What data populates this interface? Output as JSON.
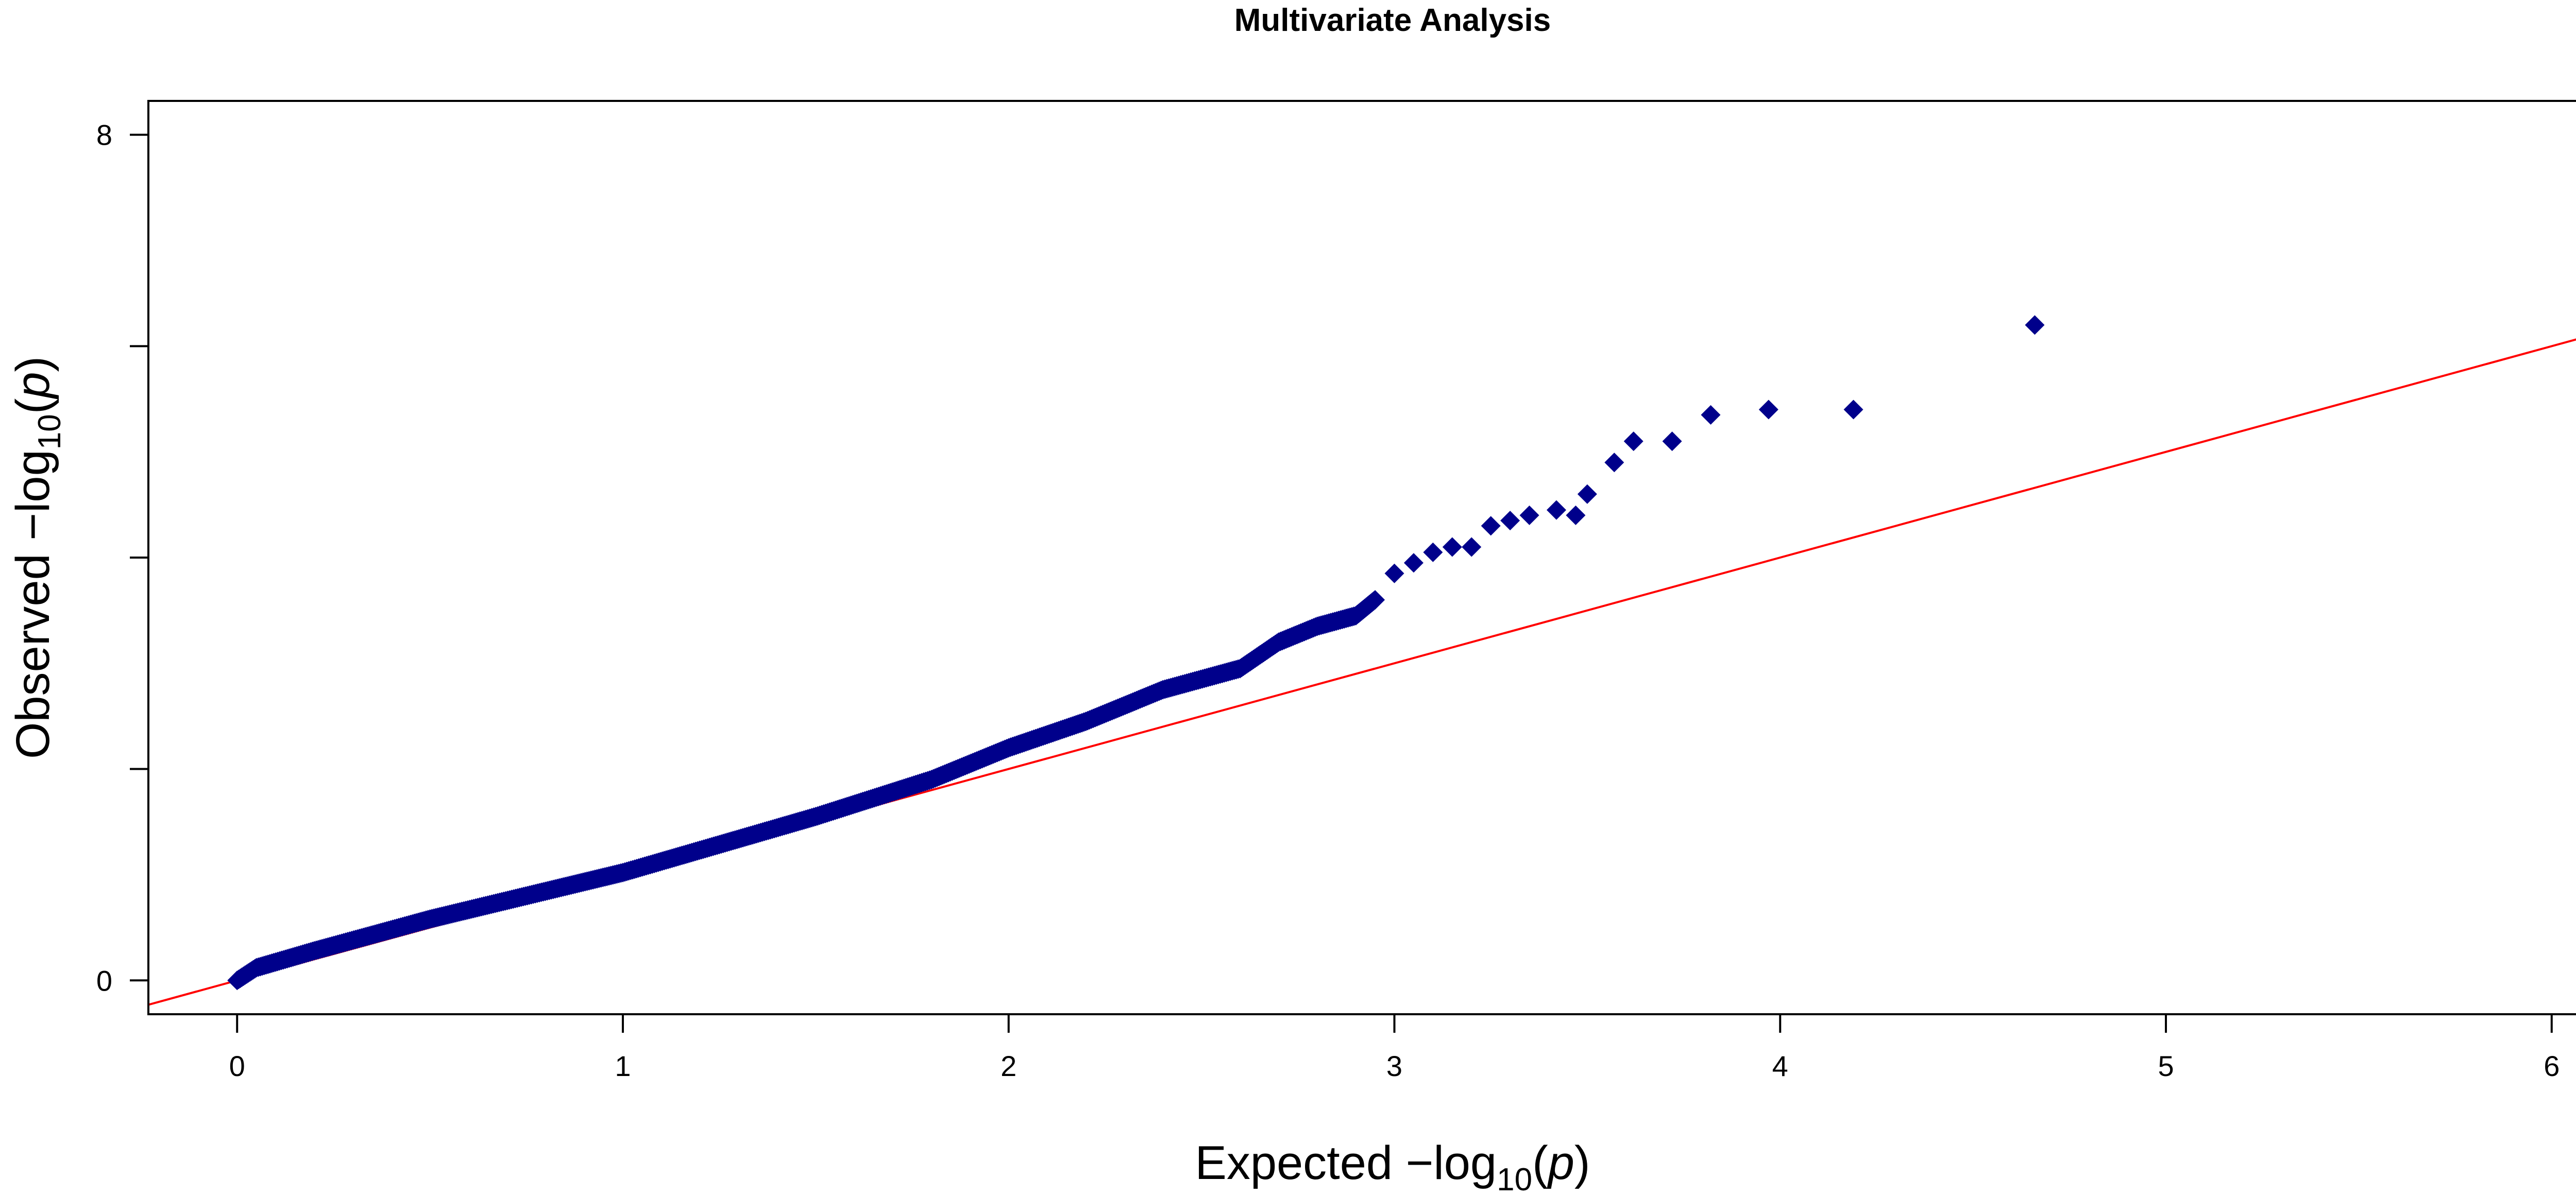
{
  "chart_data": {
    "type": "scatter",
    "title": "Multivariate Analysis",
    "xlabel": {
      "pre": "Expected  −log",
      "sub": "10",
      "paren_open": "(",
      "var": "p",
      "paren_close": ")"
    },
    "ylabel": {
      "pre": "Observed  −log",
      "sub": "10",
      "paren_open": "(",
      "var": "p",
      "paren_close": ")"
    },
    "xlim": [
      -0.23,
      6.23
    ],
    "ylim": [
      -0.32,
      8.32
    ],
    "x_ticks": [
      0,
      1,
      2,
      3,
      4,
      5,
      6
    ],
    "x_tick_labels": [
      "0",
      "1",
      "2",
      "3",
      "4",
      "5",
      "6"
    ],
    "y_ticks": [
      0,
      2,
      4,
      6,
      8
    ],
    "y_tick_labels": [
      "0",
      "",
      "",
      "",
      "8"
    ],
    "grid": false,
    "colors": {
      "points": "#00008B",
      "reference_line": "#FF0000",
      "axes": "#000000"
    },
    "reference_line": {
      "slope": 1,
      "intercept": 0
    },
    "series": [
      {
        "marker": "diamond",
        "curve_anchor_points": [
          [
            0.0,
            0.0
          ],
          [
            0.05,
            0.12
          ],
          [
            0.2,
            0.28
          ],
          [
            0.5,
            0.58
          ],
          [
            1.0,
            1.02
          ],
          [
            1.5,
            1.55
          ],
          [
            1.8,
            1.9
          ],
          [
            2.0,
            2.2
          ],
          [
            2.2,
            2.45
          ],
          [
            2.4,
            2.75
          ],
          [
            2.6,
            2.95
          ],
          [
            2.7,
            3.2
          ],
          [
            2.8,
            3.35
          ],
          [
            2.9,
            3.45
          ],
          [
            2.95,
            3.6
          ]
        ],
        "tail_points": [
          [
            3.0,
            3.85
          ],
          [
            3.05,
            3.95
          ],
          [
            3.1,
            4.05
          ],
          [
            3.15,
            4.1
          ],
          [
            3.2,
            4.1
          ],
          [
            3.25,
            4.3
          ],
          [
            3.3,
            4.35
          ],
          [
            3.35,
            4.4
          ],
          [
            3.42,
            4.45
          ],
          [
            3.47,
            4.4
          ],
          [
            3.5,
            4.6
          ],
          [
            3.57,
            4.9
          ],
          [
            3.62,
            5.1
          ],
          [
            3.72,
            5.1
          ],
          [
            3.82,
            5.35
          ],
          [
            3.97,
            5.4
          ],
          [
            4.19,
            5.4
          ],
          [
            4.66,
            6.2
          ]
        ]
      }
    ]
  }
}
